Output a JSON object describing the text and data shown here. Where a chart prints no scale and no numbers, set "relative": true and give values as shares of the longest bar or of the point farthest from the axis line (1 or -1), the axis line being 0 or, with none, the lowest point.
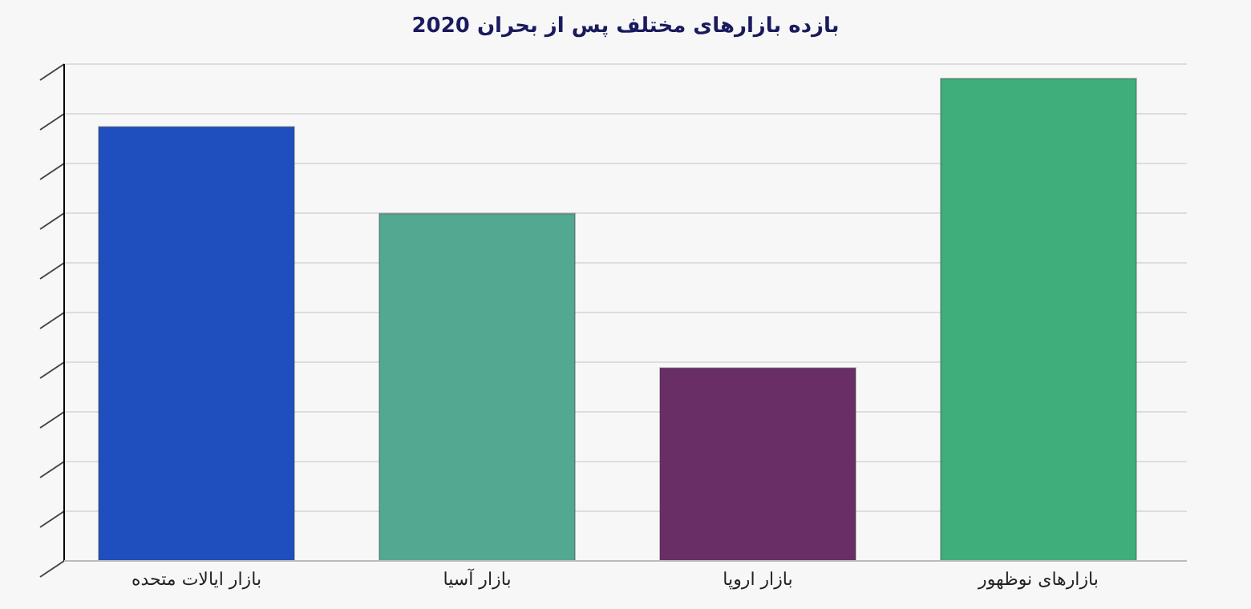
{
  "chart_data": {
    "type": "bar",
    "title": "بازده بازارهای مختلف پس از بحران 2020",
    "relative": true,
    "grid": "y",
    "categories": [
      "بازار ایالات متحده",
      "بازار آسیا",
      "بازار اروپا",
      "بازارهای نوظهور"
    ],
    "values": [
      0.9,
      0.72,
      0.4,
      1
    ],
    "colors": [
      "#1f4fbf",
      "#52a891",
      "#6a2e66",
      "#3fae7a"
    ]
  }
}
